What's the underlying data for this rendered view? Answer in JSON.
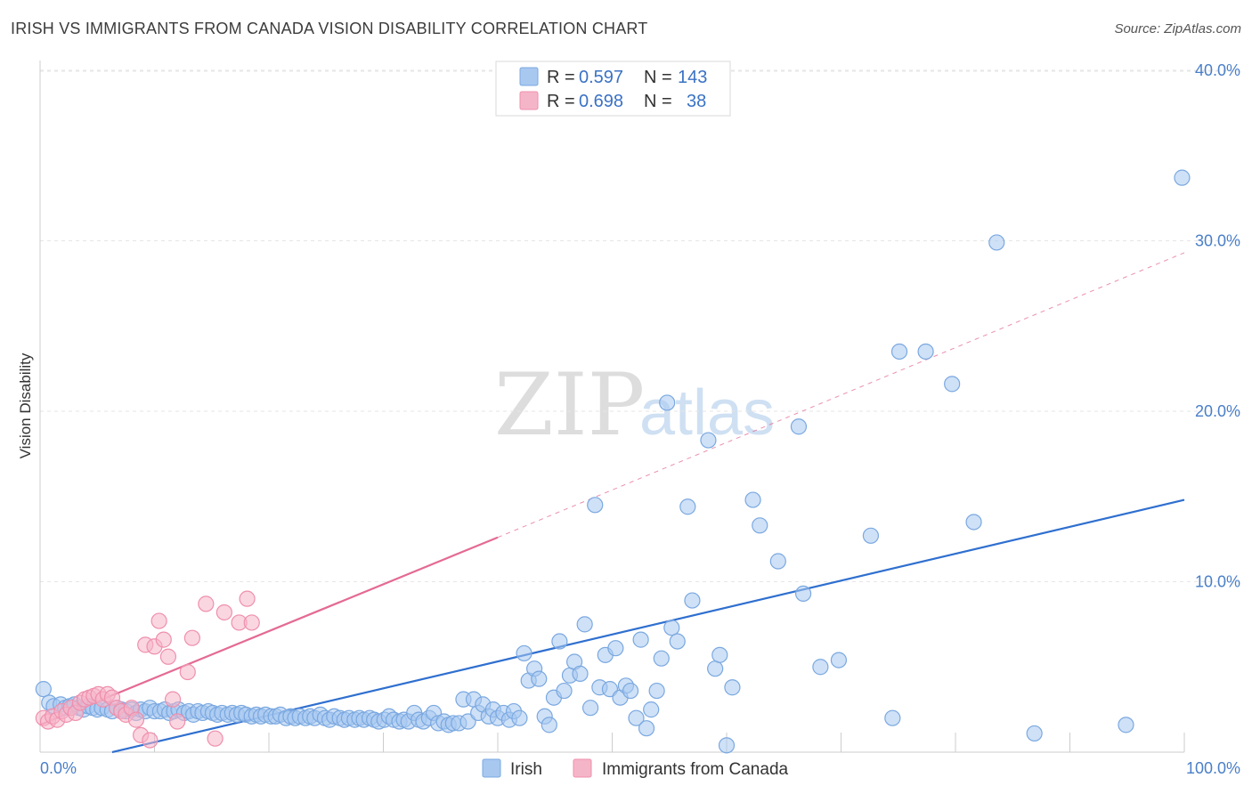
{
  "title": "IRISH VS IMMIGRANTS FROM CANADA VISION DISABILITY CORRELATION CHART",
  "source": "Source: ZipAtlas.com",
  "watermark": {
    "zip": "ZIP",
    "atlas": "atlas"
  },
  "legend_box": [
    {
      "r_label": "R =",
      "r_value": "0.597",
      "n_label": "N =",
      "n_value": "143",
      "color": "#a8c8f0"
    },
    {
      "r_label": "R =",
      "r_value": "0.698",
      "n_label": "N =",
      "n_value": "38",
      "color": "#f5b5c8"
    }
  ],
  "bottom_legend": [
    {
      "label": "Irish",
      "color": "#a8c8f0"
    },
    {
      "label": "Immigrants from Canada",
      "color": "#f5b5c8"
    }
  ],
  "chart_data": {
    "type": "scatter",
    "title": "IRISH VS IMMIGRANTS FROM CANADA VISION DISABILITY CORRELATION CHART",
    "xlabel": "",
    "ylabel": "Vision Disability",
    "xlim": [
      0,
      100
    ],
    "ylim": [
      0,
      42
    ],
    "x_tick_labels": [
      {
        "value": 0,
        "label": "0.0%"
      },
      {
        "value": 100,
        "label": "100.0%"
      }
    ],
    "y_tick_labels": [
      {
        "value": 10,
        "label": "10.0%"
      },
      {
        "value": 20,
        "label": "20.0%"
      },
      {
        "value": 30,
        "label": "30.0%"
      },
      {
        "value": 40,
        "label": "40.0%"
      }
    ],
    "grid": true,
    "series": [
      {
        "name": "Irish",
        "color": "#a8c8f0",
        "stroke": "#7aa8e0",
        "trend": {
          "x": [
            6.3,
            100
          ],
          "y": [
            0,
            14.8
          ],
          "color": "#2f6fcf"
        },
        "points": [
          [
            0.3,
            3.7
          ],
          [
            0.8,
            2.9
          ],
          [
            1.2,
            2.7
          ],
          [
            1.8,
            2.8
          ],
          [
            2.2,
            2.6
          ],
          [
            2.6,
            2.7
          ],
          [
            3.0,
            2.8
          ],
          [
            3.4,
            2.6
          ],
          [
            3.8,
            2.5
          ],
          [
            4.2,
            2.7
          ],
          [
            4.6,
            2.6
          ],
          [
            5.0,
            2.5
          ],
          [
            5.4,
            2.6
          ],
          [
            5.9,
            2.5
          ],
          [
            6.3,
            2.4
          ],
          [
            6.7,
            2.6
          ],
          [
            7.1,
            2.5
          ],
          [
            7.5,
            2.4
          ],
          [
            8.0,
            2.5
          ],
          [
            8.4,
            2.3
          ],
          [
            8.8,
            2.5
          ],
          [
            9.2,
            2.4
          ],
          [
            9.6,
            2.6
          ],
          [
            10.0,
            2.4
          ],
          [
            10.5,
            2.4
          ],
          [
            10.9,
            2.5
          ],
          [
            11.3,
            2.3
          ],
          [
            11.7,
            2.4
          ],
          [
            12.1,
            2.5
          ],
          [
            12.6,
            2.3
          ],
          [
            13.0,
            2.4
          ],
          [
            13.4,
            2.2
          ],
          [
            13.8,
            2.4
          ],
          [
            14.2,
            2.3
          ],
          [
            14.7,
            2.4
          ],
          [
            15.1,
            2.3
          ],
          [
            15.5,
            2.2
          ],
          [
            15.9,
            2.3
          ],
          [
            16.4,
            2.2
          ],
          [
            16.8,
            2.3
          ],
          [
            17.2,
            2.2
          ],
          [
            17.6,
            2.3
          ],
          [
            18.0,
            2.2
          ],
          [
            18.5,
            2.1
          ],
          [
            18.9,
            2.2
          ],
          [
            19.3,
            2.1
          ],
          [
            19.7,
            2.2
          ],
          [
            20.2,
            2.1
          ],
          [
            20.6,
            2.1
          ],
          [
            21.0,
            2.2
          ],
          [
            21.5,
            2.0
          ],
          [
            21.9,
            2.1
          ],
          [
            22.3,
            2.0
          ],
          [
            22.7,
            2.1
          ],
          [
            23.2,
            2.0
          ],
          [
            23.6,
            2.1
          ],
          [
            24.0,
            2.0
          ],
          [
            24.5,
            2.2
          ],
          [
            24.9,
            2.0
          ],
          [
            25.3,
            1.9
          ],
          [
            25.7,
            2.1
          ],
          [
            26.2,
            2.0
          ],
          [
            26.6,
            1.9
          ],
          [
            27.0,
            2.0
          ],
          [
            27.5,
            1.9
          ],
          [
            27.9,
            2.0
          ],
          [
            28.3,
            1.9
          ],
          [
            28.8,
            2.0
          ],
          [
            29.2,
            1.9
          ],
          [
            29.6,
            1.8
          ],
          [
            30.1,
            1.9
          ],
          [
            30.5,
            2.1
          ],
          [
            30.9,
            1.9
          ],
          [
            31.4,
            1.8
          ],
          [
            31.8,
            1.9
          ],
          [
            32.2,
            1.8
          ],
          [
            32.7,
            2.3
          ],
          [
            33.1,
            1.9
          ],
          [
            33.5,
            1.8
          ],
          [
            34.0,
            2.0
          ],
          [
            34.4,
            2.3
          ],
          [
            34.8,
            1.7
          ],
          [
            35.3,
            1.8
          ],
          [
            35.7,
            1.6
          ],
          [
            36.1,
            1.7
          ],
          [
            36.6,
            1.7
          ],
          [
            37.0,
            3.1
          ],
          [
            37.4,
            1.8
          ],
          [
            37.9,
            3.1
          ],
          [
            38.3,
            2.3
          ],
          [
            38.7,
            2.8
          ],
          [
            39.2,
            2.1
          ],
          [
            39.6,
            2.5
          ],
          [
            40.0,
            2.0
          ],
          [
            40.5,
            2.3
          ],
          [
            41.0,
            1.9
          ],
          [
            41.4,
            2.4
          ],
          [
            41.9,
            2.0
          ],
          [
            42.3,
            5.8
          ],
          [
            42.7,
            4.2
          ],
          [
            43.2,
            4.9
          ],
          [
            43.6,
            4.3
          ],
          [
            44.1,
            2.1
          ],
          [
            44.5,
            1.6
          ],
          [
            44.9,
            3.2
          ],
          [
            45.4,
            6.5
          ],
          [
            45.8,
            3.6
          ],
          [
            46.3,
            4.5
          ],
          [
            46.7,
            5.3
          ],
          [
            47.2,
            4.6
          ],
          [
            47.6,
            7.5
          ],
          [
            48.1,
            2.6
          ],
          [
            48.5,
            14.5
          ],
          [
            48.9,
            3.8
          ],
          [
            49.4,
            5.7
          ],
          [
            49.8,
            3.7
          ],
          [
            50.3,
            6.1
          ],
          [
            50.7,
            3.2
          ],
          [
            51.2,
            3.9
          ],
          [
            51.6,
            3.6
          ],
          [
            52.1,
            2.0
          ],
          [
            52.5,
            6.6
          ],
          [
            53.0,
            1.4
          ],
          [
            53.4,
            2.5
          ],
          [
            53.9,
            3.6
          ],
          [
            54.3,
            5.5
          ],
          [
            54.8,
            20.5
          ],
          [
            55.2,
            7.3
          ],
          [
            55.7,
            6.5
          ],
          [
            56.6,
            14.4
          ],
          [
            57.0,
            8.9
          ],
          [
            58.4,
            18.3
          ],
          [
            59.0,
            4.9
          ],
          [
            59.4,
            5.7
          ],
          [
            60.0,
            0.4
          ],
          [
            60.5,
            3.8
          ],
          [
            62.3,
            14.8
          ],
          [
            62.9,
            13.3
          ],
          [
            64.5,
            11.2
          ],
          [
            66.3,
            19.1
          ],
          [
            66.7,
            9.3
          ],
          [
            68.2,
            5.0
          ],
          [
            69.8,
            5.4
          ],
          [
            72.6,
            12.7
          ],
          [
            74.5,
            2.0
          ],
          [
            75.1,
            23.5
          ],
          [
            77.4,
            23.5
          ],
          [
            79.7,
            21.6
          ],
          [
            81.6,
            13.5
          ],
          [
            83.6,
            29.9
          ],
          [
            86.9,
            1.1
          ],
          [
            94.9,
            1.6
          ],
          [
            99.8,
            33.7
          ]
        ]
      },
      {
        "name": "Immigrants from Canada",
        "color": "#f5b5c8",
        "stroke": "#ef8fac",
        "trend": {
          "x": [
            0,
            40
          ],
          "y": [
            1.6,
            12.6
          ],
          "dashed_to": [
            100,
            29.3
          ],
          "color": "#e46a94"
        },
        "points": [
          [
            0.3,
            2.0
          ],
          [
            0.7,
            1.8
          ],
          [
            1.1,
            2.1
          ],
          [
            1.5,
            1.9
          ],
          [
            1.9,
            2.4
          ],
          [
            2.3,
            2.2
          ],
          [
            2.7,
            2.6
          ],
          [
            3.1,
            2.3
          ],
          [
            3.5,
            2.9
          ],
          [
            3.9,
            3.1
          ],
          [
            4.3,
            3.2
          ],
          [
            4.7,
            3.3
          ],
          [
            5.1,
            3.4
          ],
          [
            5.5,
            3.1
          ],
          [
            5.9,
            3.4
          ],
          [
            6.3,
            3.2
          ],
          [
            6.7,
            2.6
          ],
          [
            7.1,
            2.4
          ],
          [
            7.5,
            2.2
          ],
          [
            8.0,
            2.6
          ],
          [
            8.4,
            1.9
          ],
          [
            8.8,
            1.0
          ],
          [
            9.2,
            6.3
          ],
          [
            9.6,
            0.7
          ],
          [
            10.0,
            6.2
          ],
          [
            10.4,
            7.7
          ],
          [
            10.8,
            6.6
          ],
          [
            11.2,
            5.6
          ],
          [
            11.6,
            3.1
          ],
          [
            12.0,
            1.8
          ],
          [
            12.9,
            4.7
          ],
          [
            13.3,
            6.7
          ],
          [
            14.5,
            8.7
          ],
          [
            15.3,
            0.8
          ],
          [
            16.1,
            8.2
          ],
          [
            17.4,
            7.6
          ],
          [
            18.1,
            9.0
          ],
          [
            18.5,
            7.6
          ]
        ]
      }
    ]
  }
}
